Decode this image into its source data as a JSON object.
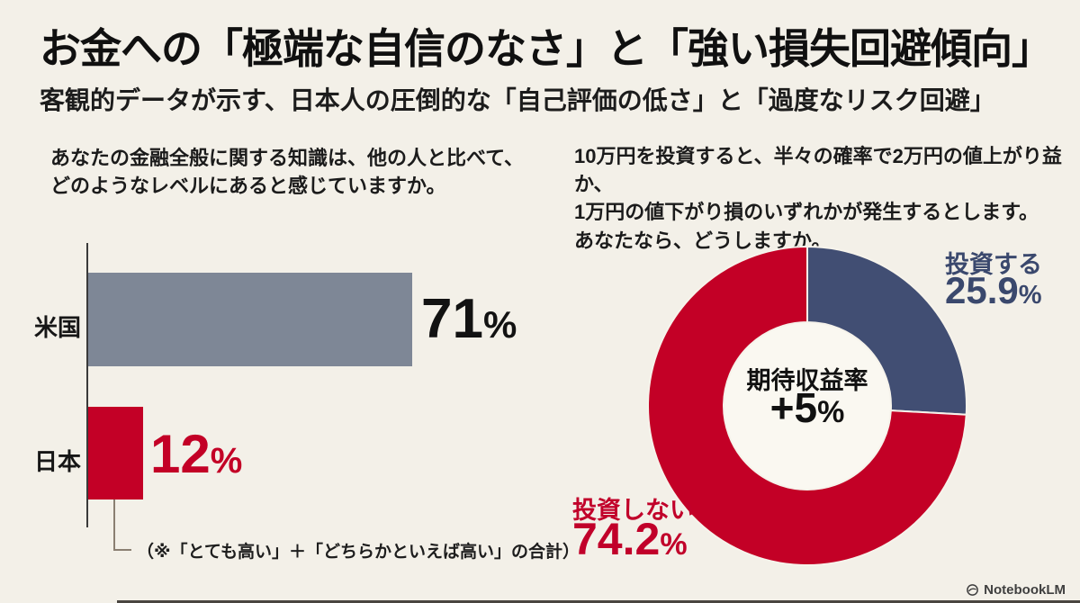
{
  "page": {
    "background": "#F3F0E8",
    "title": "お金への「極端な自信のなさ」と「強い損失回避傾向」",
    "subtitle": "客観的データが示す、日本人の圧倒的な「自己評価の低さ」と「過度なリスク回避」"
  },
  "footer": {
    "brand": "NotebookLM"
  },
  "chart_data": [
    {
      "type": "bar",
      "orientation": "horizontal",
      "question_lines": [
        "あなたの金融全般に関する知識は、他の人と比べて、",
        "どのようなレベルにあると感じていますか。"
      ],
      "bars": [
        {
          "category": "米国",
          "value": 71,
          "display": "71",
          "unit": "%",
          "bar_color": "#7E8796",
          "value_color": "#121212"
        },
        {
          "category": "日本",
          "value": 12,
          "display": "12",
          "unit": "%",
          "bar_color": "#C30026",
          "value_color": "#C30026"
        }
      ],
      "xlim": [
        0,
        100
      ],
      "footnote": "（※「とても高い」＋「どちらかといえば高い」の合計）"
    },
    {
      "type": "pie",
      "donut": true,
      "question_lines": [
        "10万円を投資すると、半々の確率で2万円の値上がり益か、",
        "1万円の値下がり損のいずれかが発生するとします。",
        "あなたなら、どうしますか。"
      ],
      "slices": [
        {
          "label": "投資する",
          "value": 25.9,
          "display": "25.9",
          "unit": "%",
          "color": "#414E73",
          "label_color": "#3A486D"
        },
        {
          "label": "投資しない",
          "value": 74.2,
          "display": "74.2",
          "unit": "%",
          "color": "#C30026",
          "label_color": "#C1002A"
        }
      ],
      "center": {
        "label": "期待収益率",
        "value": "+5",
        "unit": "%"
      },
      "start_angle_deg": 0,
      "direction": "clockwise",
      "legend": "none"
    }
  ]
}
